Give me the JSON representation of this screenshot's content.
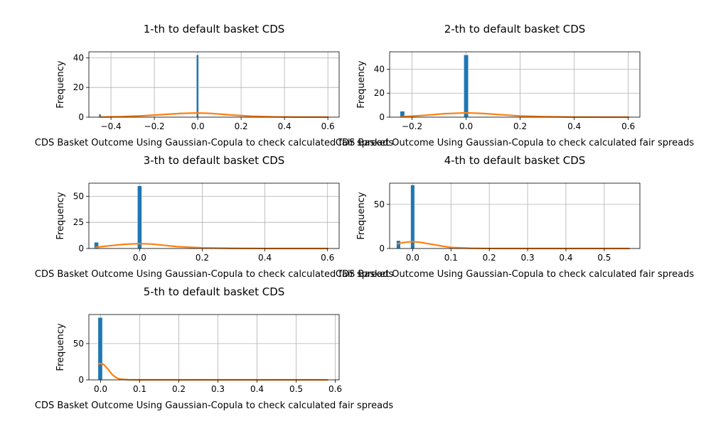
{
  "colors": {
    "bar": "#1f77b4",
    "kde": "#ff7f0e",
    "grid": "#b0b0b0",
    "axis": "#000000"
  },
  "chart_data": [
    {
      "type": "bar",
      "title": "1-th to default basket CDS",
      "xlabel": "CDS Basket Outcome Using Gaussian-Copula to check calculated fair spreads",
      "ylabel": "Frequency",
      "grid": true,
      "xlim": [
        -0.502,
        0.652
      ],
      "ylim": [
        0,
        44
      ],
      "xticks": [
        -0.4,
        -0.2,
        0.0,
        0.2,
        0.4,
        0.6
      ],
      "xtick_labels": [
        "−0.4",
        "−0.2",
        "0.0",
        "0.2",
        "0.4",
        "0.6"
      ],
      "yticks": [
        0,
        20,
        40
      ],
      "ytick_labels": [
        "0",
        "20",
        "40"
      ],
      "bin_width": 0.0105,
      "bars": [
        {
          "x": -0.451,
          "value": 2
        },
        {
          "x": -0.001,
          "value": 42
        }
      ],
      "kde": {
        "x": [
          -0.45,
          -0.35,
          -0.25,
          -0.15,
          -0.08,
          0.0,
          0.06,
          0.15,
          0.25,
          0.35,
          0.45,
          0.6
        ],
        "y": [
          0.1,
          0.35,
          0.95,
          1.85,
          2.5,
          2.8,
          2.55,
          1.5,
          0.6,
          0.2,
          0.05,
          0.0
        ]
      }
    },
    {
      "type": "bar",
      "title": "2-th to default basket CDS",
      "xlabel": "CDS Basket Outcome Using Gaussian-Copula to check calculated fair spreads",
      "ylabel": "Frequency",
      "grid": true,
      "xlim": [
        -0.283,
        0.643
      ],
      "ylim": [
        0,
        54.5
      ],
      "xticks": [
        -0.2,
        0.0,
        0.2,
        0.4,
        0.6
      ],
      "xtick_labels": [
        "−0.2",
        "0.0",
        "0.2",
        "0.4",
        "0.6"
      ],
      "yticks": [
        0,
        20,
        40
      ],
      "ytick_labels": [
        "0",
        "20",
        "40"
      ],
      "bin_width": 0.017,
      "bars": [
        {
          "x": -0.236,
          "value": 5
        },
        {
          "x": 0.0,
          "value": 52
        }
      ],
      "kde": {
        "x": [
          -0.24,
          -0.15,
          -0.08,
          0.0,
          0.06,
          0.12,
          0.2,
          0.3,
          0.4,
          0.5,
          0.6
        ],
        "y": [
          0.3,
          1.6,
          2.9,
          3.6,
          3.1,
          2.2,
          1.0,
          0.35,
          0.08,
          0.02,
          0.0
        ]
      }
    },
    {
      "type": "bar",
      "title": "3-th to default basket CDS",
      "xlabel": "CDS Basket Outcome Using Gaussian-Copula to check calculated fair spreads",
      "ylabel": "Frequency",
      "grid": true,
      "xlim": [
        -0.162,
        0.637
      ],
      "ylim": [
        0,
        62.5
      ],
      "xticks": [
        0.0,
        0.2,
        0.4,
        0.6
      ],
      "xtick_labels": [
        "0.0",
        "0.2",
        "0.4",
        "0.6"
      ],
      "yticks": [
        0,
        25,
        50
      ],
      "ytick_labels": [
        "0",
        "25",
        "50"
      ],
      "bin_width": 0.014,
      "bars": [
        {
          "x": -0.138,
          "value": 6
        },
        {
          "x": 0.0,
          "value": 60
        }
      ],
      "kde": {
        "x": [
          -0.14,
          -0.1,
          -0.05,
          0.0,
          0.04,
          0.08,
          0.12,
          0.2,
          0.3,
          0.4,
          0.5,
          0.6
        ],
        "y": [
          1.2,
          2.5,
          4.0,
          4.7,
          4.2,
          3.0,
          1.8,
          0.6,
          0.15,
          0.03,
          0.0,
          0.0
        ]
      }
    },
    {
      "type": "bar",
      "title": "4-th to default basket CDS",
      "xlabel": "CDS Basket Outcome Using Gaussian-Copula to check calculated fair spreads",
      "ylabel": "Frequency",
      "grid": true,
      "xlim": [
        -0.06,
        0.593
      ],
      "ylim": [
        0,
        74
      ],
      "xticks": [
        0.0,
        0.1,
        0.2,
        0.3,
        0.4,
        0.5
      ],
      "xtick_labels": [
        "0.0",
        "0.1",
        "0.2",
        "0.3",
        "0.4",
        "0.5"
      ],
      "yticks": [
        0,
        50
      ],
      "ytick_labels": [
        "0",
        "50"
      ],
      "bin_width": 0.0105,
      "bars": [
        {
          "x": -0.037,
          "value": 9
        },
        {
          "x": 0.0,
          "value": 72
        }
      ],
      "kde": {
        "x": [
          -0.04,
          -0.02,
          0.0,
          0.02,
          0.05,
          0.08,
          0.1,
          0.15,
          0.2,
          0.3,
          0.4,
          0.5,
          0.565
        ],
        "y": [
          5.5,
          7.0,
          7.8,
          7.0,
          4.8,
          2.5,
          1.2,
          0.3,
          0.05,
          0.0,
          0.0,
          0.0,
          0.0
        ]
      }
    },
    {
      "type": "bar",
      "title": "5-th to default basket CDS",
      "xlabel": "CDS Basket Outcome Using Gaussian-Copula to check calculated fair spreads",
      "ylabel": "Frequency",
      "grid": true,
      "xlim": [
        -0.03,
        0.61
      ],
      "ylim": [
        0,
        90
      ],
      "xticks": [
        0.0,
        0.1,
        0.2,
        0.3,
        0.4,
        0.5,
        0.6
      ],
      "xtick_labels": [
        "0.0",
        "0.1",
        "0.2",
        "0.3",
        "0.4",
        "0.5",
        "0.6"
      ],
      "yticks": [
        0,
        50
      ],
      "ytick_labels": [
        "0",
        "50"
      ],
      "bin_width": 0.0115,
      "bars": [
        {
          "x": -0.001,
          "value": 86
        }
      ],
      "kde": {
        "x": [
          -0.005,
          0.0,
          0.005,
          0.01,
          0.02,
          0.03,
          0.04,
          0.05,
          0.07,
          0.1,
          0.2,
          0.3,
          0.4,
          0.5,
          0.58
        ],
        "y": [
          22,
          22.5,
          22,
          20,
          14,
          7,
          3,
          1,
          0.2,
          0.0,
          0.0,
          0.0,
          0.0,
          0.0,
          0.0
        ]
      }
    }
  ]
}
